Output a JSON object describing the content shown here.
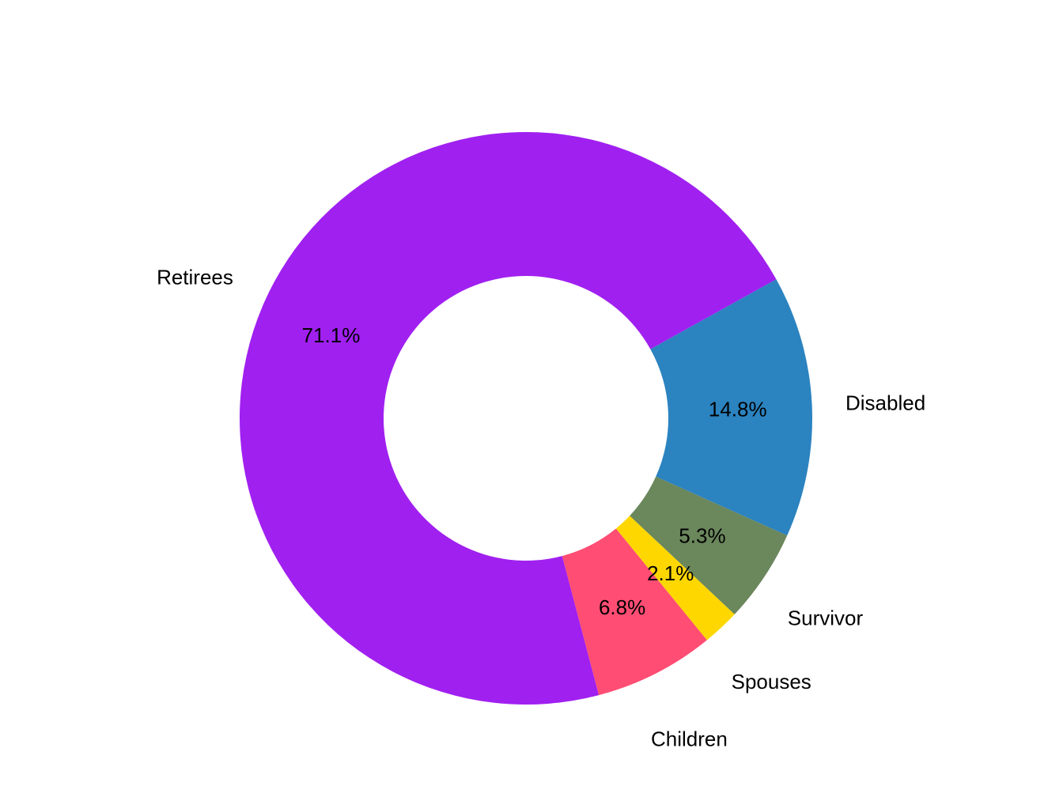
{
  "chart_data": {
    "type": "pie",
    "donut": true,
    "slices": [
      {
        "label": "Retirees",
        "value": 71.1,
        "value_label": "71.1%",
        "color": "#A020F0"
      },
      {
        "label": "Disabled",
        "value": 14.8,
        "value_label": "14.8%",
        "color": "#2B83C0"
      },
      {
        "label": "Survivor",
        "value": 5.3,
        "value_label": "5.3%",
        "color": "#6B875C"
      },
      {
        "label": "Spouses",
        "value": 2.1,
        "value_label": "2.1%",
        "color": "#FFD700"
      },
      {
        "label": "Children",
        "value": 6.8,
        "value_label": "6.8%",
        "color": "#FF4D73"
      }
    ]
  }
}
